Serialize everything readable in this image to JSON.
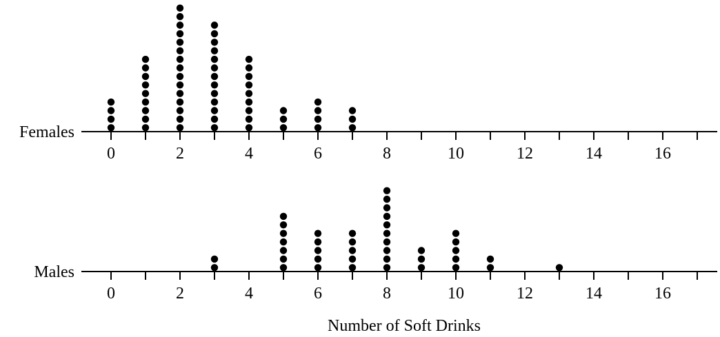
{
  "chart_data": [
    {
      "type": "dot",
      "label": "Females",
      "x": [
        0,
        1,
        2,
        3,
        4,
        5,
        6,
        7
      ],
      "values": [
        4,
        9,
        15,
        13,
        9,
        3,
        4,
        3
      ],
      "xlim": [
        -0.86,
        17.58
      ],
      "xticks": [
        0,
        2,
        4,
        6,
        8,
        10,
        12,
        14,
        16
      ],
      "minor_xticks": [
        1,
        3,
        5,
        7,
        9,
        11,
        13,
        15,
        17
      ],
      "color": "#000000"
    },
    {
      "type": "dot",
      "label": "Males",
      "x": [
        3,
        5,
        6,
        7,
        8,
        9,
        10,
        11,
        13
      ],
      "values": [
        2,
        7,
        5,
        5,
        10,
        3,
        5,
        2,
        1
      ],
      "xlim": [
        -0.86,
        17.58
      ],
      "xticks": [
        0,
        2,
        4,
        6,
        8,
        10,
        12,
        14,
        16
      ],
      "minor_xticks": [
        1,
        3,
        5,
        7,
        9,
        11,
        13,
        15,
        17
      ],
      "color": "#000000",
      "xlabel": "Number of Soft Drinks"
    }
  ]
}
